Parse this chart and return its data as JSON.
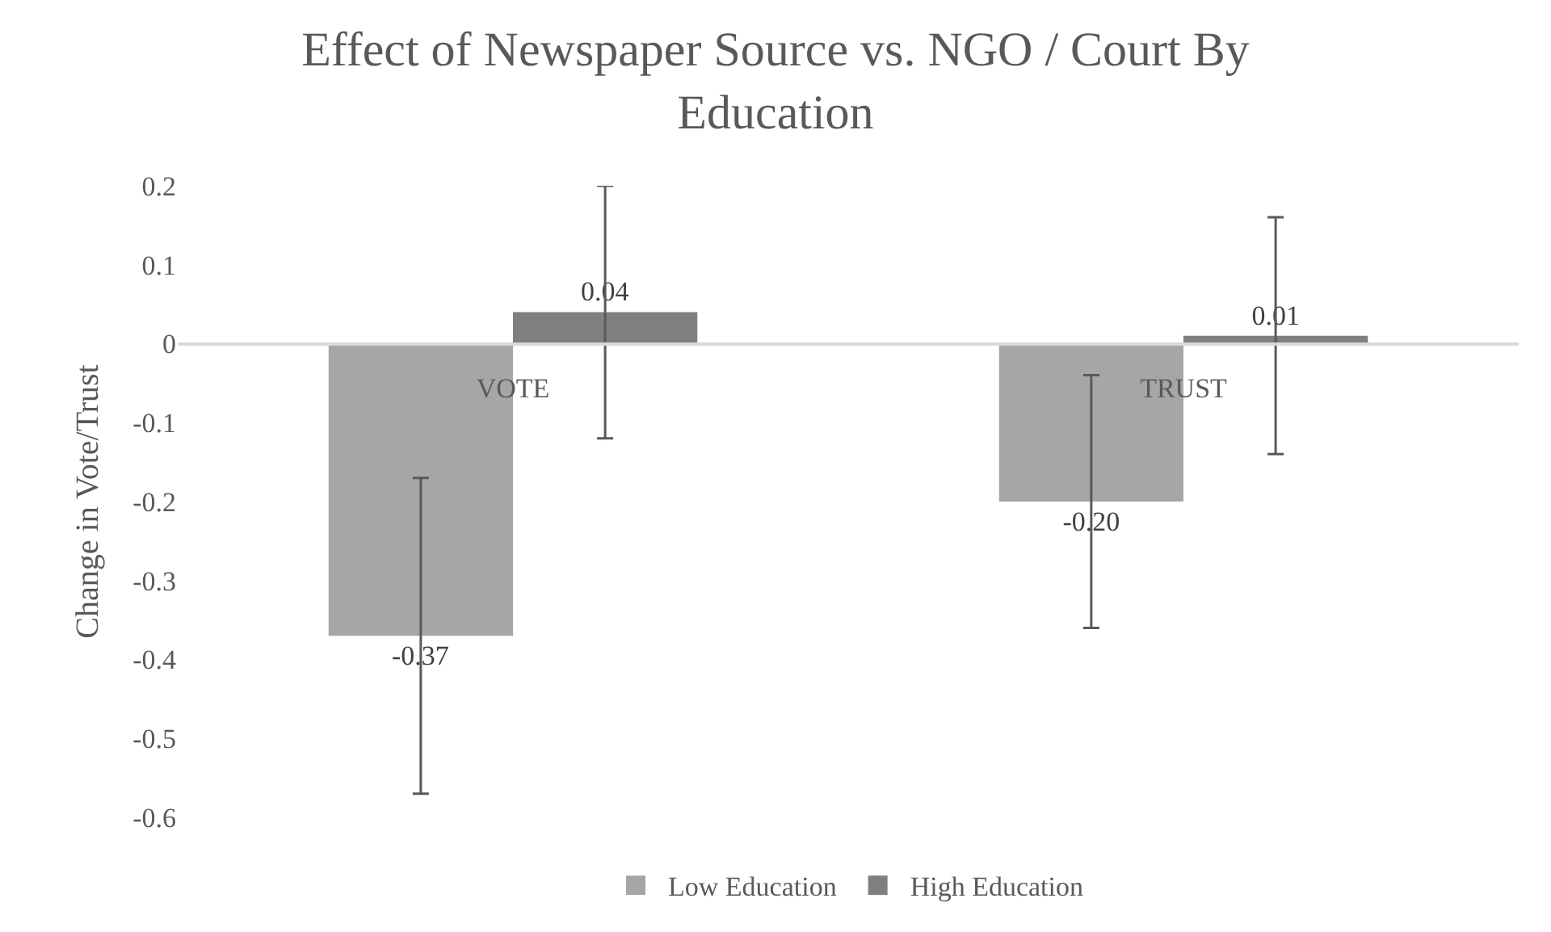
{
  "chart_data": {
    "type": "bar",
    "title": "Effect of Newspaper Source vs. NGO / Court By Education",
    "ylabel": "Change in Vote/Trust",
    "categories": [
      "VOTE",
      "TRUST"
    ],
    "series": [
      {
        "name": "Low Education",
        "color": "#a6a6a6",
        "values": [
          -0.37,
          -0.2
        ],
        "errors": [
          0.2,
          0.16
        ],
        "value_labels": [
          "-0.37",
          "-0.20"
        ]
      },
      {
        "name": "High Education",
        "color": "#7f7f7f",
        "values": [
          0.04,
          0.01
        ],
        "errors": [
          0.16,
          0.15
        ],
        "value_labels": [
          "0.04",
          "0.01"
        ]
      }
    ],
    "ylim": [
      -0.6,
      0.2
    ],
    "yticks": [
      -0.6,
      -0.5,
      -0.4,
      -0.3,
      -0.2,
      -0.1,
      0,
      0.1,
      0.2
    ],
    "legend": "bottom"
  }
}
